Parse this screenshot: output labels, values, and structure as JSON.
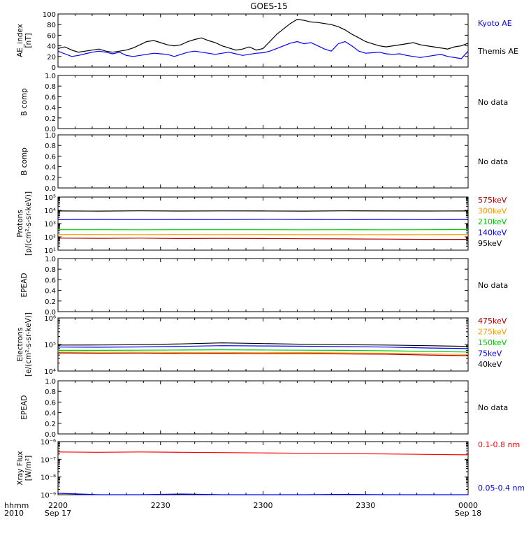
{
  "title": "GOES-15",
  "time_axis": {
    "ticks": [
      {
        "label": "2200",
        "sub": "Sep 17"
      },
      {
        "label": "2230",
        "sub": ""
      },
      {
        "label": "2300",
        "sub": ""
      },
      {
        "label": "2330",
        "sub": ""
      },
      {
        "label": "0000",
        "sub": "Sep 18"
      }
    ],
    "corner_label": "hhmm",
    "corner_year": "2010"
  },
  "chart_data": [
    {
      "type": "line",
      "ylabel": [
        "AE_index",
        "[nT]"
      ],
      "ylim": [
        0,
        100
      ],
      "yticks": [
        "0",
        "20",
        "40",
        "60",
        "80",
        "100"
      ],
      "x_hours": [
        0,
        0.033,
        0.067,
        0.1,
        0.133,
        0.167,
        0.2,
        0.233,
        0.267,
        0.3,
        0.333,
        0.367,
        0.4,
        0.433,
        0.467,
        0.5,
        0.533,
        0.567,
        0.6,
        0.633,
        0.667,
        0.7,
        0.733,
        0.767,
        0.8,
        0.833,
        0.867,
        0.9,
        0.933,
        0.967,
        1.0,
        1.033,
        1.067,
        1.1,
        1.133,
        1.167,
        1.2,
        1.233,
        1.267,
        1.3,
        1.333,
        1.367,
        1.4,
        1.433,
        1.467,
        1.5,
        1.533,
        1.567,
        1.6,
        1.633,
        1.667,
        1.7,
        1.733,
        1.767,
        1.8,
        1.833,
        1.867,
        1.9,
        1.933,
        1.967,
        2.0
      ],
      "series": [
        {
          "name": "Kyoto AE",
          "color": "#0000ff",
          "values": [
            30,
            25,
            20,
            22,
            25,
            28,
            30,
            28,
            25,
            28,
            22,
            20,
            22,
            24,
            26,
            25,
            24,
            20,
            24,
            28,
            30,
            28,
            26,
            24,
            26,
            28,
            25,
            22,
            24,
            26,
            27,
            30,
            35,
            40,
            45,
            48,
            44,
            46,
            40,
            34,
            30,
            44,
            48,
            40,
            30,
            26,
            27,
            28,
            25,
            24,
            25,
            22,
            20,
            18,
            20,
            22,
            24,
            20,
            18,
            16,
            30
          ]
        },
        {
          "name": "Themis AE",
          "color": "#000000",
          "values": [
            35,
            38,
            32,
            28,
            30,
            32,
            34,
            30,
            28,
            30,
            32,
            36,
            42,
            48,
            50,
            46,
            42,
            40,
            42,
            48,
            52,
            55,
            50,
            46,
            40,
            36,
            32,
            34,
            38,
            32,
            35,
            48,
            62,
            72,
            82,
            90,
            88,
            85,
            84,
            82,
            80,
            76,
            70,
            62,
            55,
            48,
            44,
            40,
            38,
            40,
            42,
            44,
            46,
            42,
            40,
            38,
            36,
            34,
            38,
            40,
            45
          ]
        }
      ]
    },
    {
      "type": "line",
      "ylabel": [
        "B comp"
      ],
      "ylim": [
        0,
        1
      ],
      "yticks": [
        "0.0",
        "0.2",
        "0.4",
        "0.6",
        "0.8",
        "1.0"
      ],
      "note": "No data",
      "series": []
    },
    {
      "type": "line",
      "ylabel": [
        "B comp"
      ],
      "ylim": [
        0,
        1
      ],
      "yticks": [
        "0.0",
        "0.2",
        "0.4",
        "0.6",
        "0.8",
        "1.0"
      ],
      "note": "No data",
      "series": []
    },
    {
      "type": "line",
      "log": true,
      "ylabel": [
        "Protons",
        "[p/(cm²-s-sr-keV)]"
      ],
      "ylim": [
        10,
        100000
      ],
      "yticks": [
        "10¹",
        "10²",
        "10³",
        "10⁴",
        "10⁵"
      ],
      "series": [
        {
          "name": "575keV",
          "color": "#b00000",
          "values": [
            80,
            78,
            80,
            75,
            78,
            75,
            72,
            70,
            68,
            65,
            65
          ]
        },
        {
          "name": "300keV",
          "color": "#ff9900",
          "values": [
            150,
            150,
            148,
            150,
            148,
            150,
            145,
            148,
            145,
            148,
            150
          ]
        },
        {
          "name": "210keV",
          "color": "#00cc00",
          "values": [
            350,
            350,
            345,
            350,
            348,
            350,
            345,
            348,
            345,
            350,
            355
          ]
        },
        {
          "name": "140keV",
          "color": "#0000ff",
          "values": [
            2000,
            2050,
            2000,
            2050,
            2000,
            2100,
            2050,
            2000,
            2050,
            2000,
            2050
          ]
        },
        {
          "name": "95keV",
          "color": "#000000",
          "values": [
            9000,
            8800,
            9200,
            8900,
            9100,
            9000,
            8800,
            9200,
            9000,
            8900,
            9000
          ]
        }
      ]
    },
    {
      "type": "line",
      "ylabel": [
        "EPEAD"
      ],
      "ylim": [
        0,
        1
      ],
      "yticks": [
        "0.0",
        "0.2",
        "0.4",
        "0.6",
        "0.8",
        "1.0"
      ],
      "note": "No data",
      "series": []
    },
    {
      "type": "line",
      "log": true,
      "ylabel": [
        "Electrons",
        "[e/(cm²-s-sr-keV)]"
      ],
      "ylim": [
        10000,
        1000000
      ],
      "yticks": [
        "10⁴",
        "10⁵",
        "10⁶"
      ],
      "series": [
        {
          "name": "475keV",
          "color": "#b00000",
          "values": [
            48000,
            47000,
            47500,
            46000,
            46500,
            45000,
            45500,
            44000,
            43000,
            40000,
            38000
          ]
        },
        {
          "name": "275keV",
          "color": "#ff9900",
          "values": [
            52000,
            51000,
            51500,
            50000,
            50500,
            49000,
            49500,
            48000,
            47000,
            44000,
            42000
          ]
        },
        {
          "name": "150keV",
          "color": "#00cc00",
          "values": [
            60000,
            60000,
            61000,
            62000,
            63000,
            62000,
            61000,
            60000,
            58000,
            55000,
            52000
          ]
        },
        {
          "name": "75keV",
          "color": "#0000ff",
          "values": [
            80000,
            79000,
            81000,
            85000,
            90000,
            88000,
            86000,
            83000,
            80000,
            74000,
            70000
          ]
        },
        {
          "name": "40keV",
          "color": "#000000",
          "values": [
            95000,
            96000,
            98000,
            105000,
            115000,
            108000,
            102000,
            98000,
            95000,
            90000,
            85000
          ]
        }
      ]
    },
    {
      "type": "line",
      "ylabel": [
        "EPEAD"
      ],
      "ylim": [
        0,
        1
      ],
      "yticks": [
        "0.0",
        "0.2",
        "0.4",
        "0.6",
        "0.8",
        "1.0"
      ],
      "note": "No data",
      "series": []
    },
    {
      "type": "line",
      "log": true,
      "ylabel": [
        "Xray Flux",
        "[W/m²]"
      ],
      "ylim": [
        1e-09,
        1e-06
      ],
      "yticks": [
        "10⁻⁹",
        "10⁻⁸",
        "10⁻⁷",
        "10⁻⁶"
      ],
      "series": [
        {
          "name": "0.1-0.8 nm",
          "color": "#ff0000",
          "values": [
            2.6e-07,
            2.5e-07,
            2.6e-07,
            2.5e-07,
            2.4e-07,
            2.3e-07,
            2.2e-07,
            2.1e-07,
            2e-07,
            1.9e-07,
            1.8e-07
          ]
        },
        {
          "name": "0.05-0.4 nm",
          "color": "#0000ff",
          "values": [
            1.2e-09,
            1e-09,
            1e-09,
            1.1e-09,
            1e-09,
            1e-09,
            1e-09,
            1.05e-09,
            1e-09,
            1e-09,
            1e-09
          ]
        }
      ]
    }
  ]
}
